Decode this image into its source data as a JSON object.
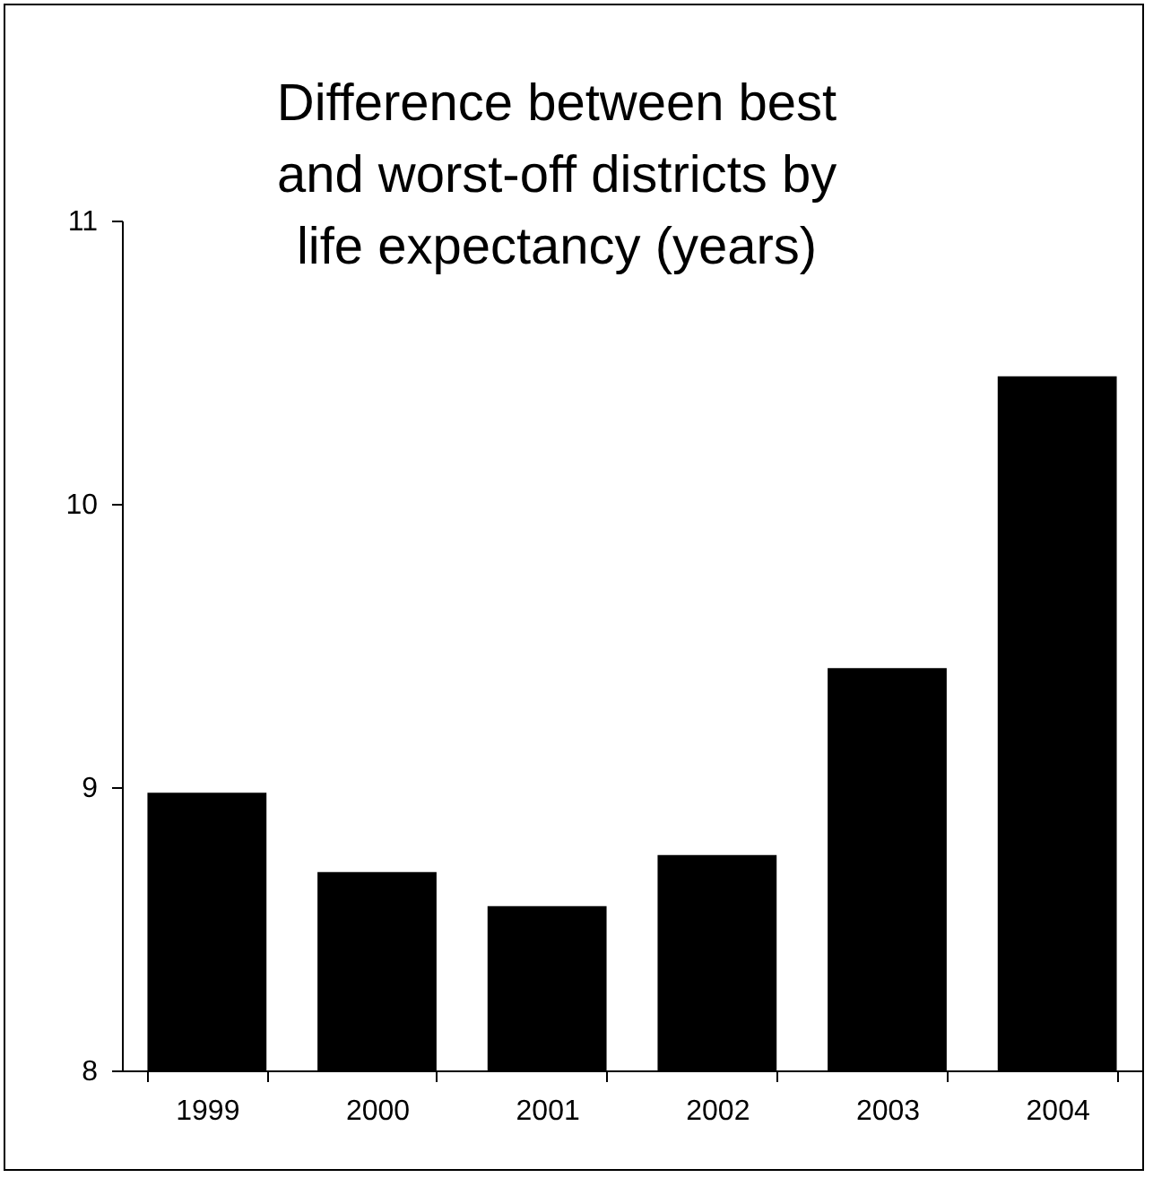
{
  "chart_data": {
    "type": "bar",
    "title": [
      "Difference between best",
      "and worst-off districts by",
      "life expectancy (years)"
    ],
    "categories": [
      "1999",
      "2000",
      "2001",
      "2002",
      "2003",
      "2004"
    ],
    "values": [
      8.98,
      8.7,
      8.58,
      8.76,
      9.42,
      10.45
    ],
    "color": "#000000",
    "ylim": [
      8,
      11
    ],
    "yticks": [
      8,
      9,
      10,
      11
    ],
    "grid": false
  }
}
